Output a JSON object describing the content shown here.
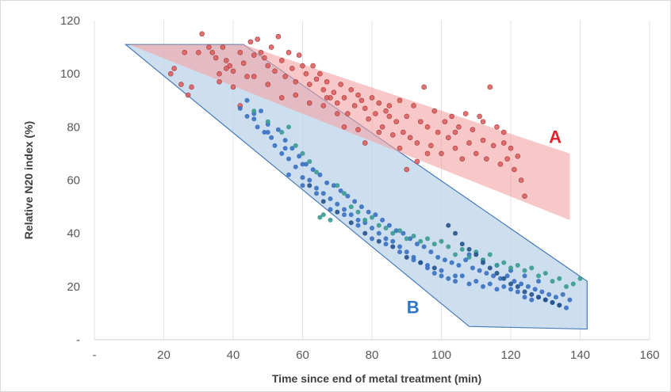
{
  "chart_data": {
    "type": "scatter",
    "xlabel": "Time since end of metal treatment (min)",
    "ylabel": "Relative N20 index (%)",
    "xlim": [
      0,
      160
    ],
    "ylim": [
      0,
      120
    ],
    "x_ticks": [
      "-",
      "20",
      "40",
      "60",
      "80",
      "100",
      "120",
      "140",
      "160"
    ],
    "y_ticks": [
      "-",
      "20",
      "40",
      "60",
      "80",
      "100",
      "120"
    ],
    "grid": "vertical",
    "colors": {
      "region_a_fill": "#f4a3a3",
      "region_a_label": "#e8222a",
      "region_b_fill": "#bcd3ea",
      "region_b_stroke": "#4a7bb7",
      "region_b_label": "#2e75c7",
      "points_red": "#d95a5a",
      "points_blue": "#3a70c0",
      "points_teal": "#3a9a90",
      "points_navy": "#24528a",
      "grid": "#e3e3e3"
    },
    "regions": [
      {
        "label": "A",
        "polygon": [
          [
            10,
            111
          ],
          [
            43,
            111
          ],
          [
            137,
            70
          ],
          [
            137,
            45
          ]
        ]
      },
      {
        "label": "B",
        "polygon": [
          [
            9,
            111
          ],
          [
            43,
            111
          ],
          [
            142,
            22
          ],
          [
            142,
            4
          ],
          [
            108,
            5
          ]
        ]
      }
    ],
    "series": [
      {
        "color_key": "points_red",
        "points": [
          [
            22,
            100
          ],
          [
            23,
            102
          ],
          [
            25,
            96
          ],
          [
            26,
            108
          ],
          [
            27,
            92
          ],
          [
            28,
            95
          ],
          [
            30,
            108
          ],
          [
            31,
            115
          ],
          [
            33,
            110
          ],
          [
            34,
            108
          ],
          [
            35,
            106
          ],
          [
            36,
            100
          ],
          [
            37,
            110
          ],
          [
            38,
            105
          ],
          [
            39,
            103
          ],
          [
            40,
            101
          ],
          [
            42,
            108
          ],
          [
            43,
            104
          ],
          [
            44,
            99
          ],
          [
            45,
            112
          ],
          [
            46,
            107
          ],
          [
            47,
            113
          ],
          [
            48,
            108
          ],
          [
            49,
            106
          ],
          [
            50,
            103
          ],
          [
            51,
            110
          ],
          [
            52,
            101
          ],
          [
            53,
            114
          ],
          [
            54,
            105
          ],
          [
            55,
            99
          ],
          [
            56,
            108
          ],
          [
            57,
            102
          ],
          [
            58,
            97
          ],
          [
            59,
            107
          ],
          [
            60,
            103
          ],
          [
            61,
            100
          ],
          [
            62,
            96
          ],
          [
            63,
            103
          ],
          [
            64,
            98
          ],
          [
            65,
            100
          ],
          [
            66,
            94
          ],
          [
            67,
            97
          ],
          [
            68,
            91
          ],
          [
            69,
            93
          ],
          [
            70,
            89
          ],
          [
            71,
            96
          ],
          [
            72,
            91
          ],
          [
            73,
            85
          ],
          [
            74,
            94
          ],
          [
            75,
            88
          ],
          [
            76,
            92
          ],
          [
            77,
            90
          ],
          [
            78,
            87
          ],
          [
            79,
            83
          ],
          [
            80,
            91
          ],
          [
            81,
            85
          ],
          [
            82,
            89
          ],
          [
            83,
            80
          ],
          [
            84,
            86
          ],
          [
            85,
            84
          ],
          [
            86,
            77
          ],
          [
            87,
            82
          ],
          [
            88,
            90
          ],
          [
            89,
            78
          ],
          [
            90,
            84
          ],
          [
            91,
            76
          ],
          [
            92,
            88
          ],
          [
            93,
            74
          ],
          [
            94,
            82
          ],
          [
            95,
            95
          ],
          [
            96,
            80
          ],
          [
            97,
            73
          ],
          [
            98,
            86
          ],
          [
            99,
            78
          ],
          [
            100,
            70
          ],
          [
            101,
            82
          ],
          [
            102,
            76
          ],
          [
            103,
            84
          ],
          [
            104,
            72
          ],
          [
            105,
            80
          ],
          [
            106,
            68
          ],
          [
            107,
            85
          ],
          [
            108,
            74
          ],
          [
            109,
            79
          ],
          [
            110,
            70
          ],
          [
            111,
            84
          ],
          [
            112,
            75
          ],
          [
            113,
            68
          ],
          [
            114,
            95
          ],
          [
            115,
            73
          ],
          [
            116,
            80
          ],
          [
            117,
            66
          ],
          [
            118,
            74
          ],
          [
            119,
            68
          ],
          [
            120,
            72
          ],
          [
            121,
            64
          ],
          [
            122,
            69
          ],
          [
            123,
            60
          ],
          [
            124,
            54
          ],
          [
            82,
            78
          ],
          [
            85,
            88
          ],
          [
            90,
            64
          ],
          [
            93,
            67
          ],
          [
            76,
            79
          ],
          [
            70,
            85
          ],
          [
            66,
            88
          ],
          [
            62,
            89
          ],
          [
            58,
            92
          ],
          [
            54,
            91
          ],
          [
            50,
            96
          ],
          [
            46,
            99
          ],
          [
            42,
            88
          ],
          [
            40,
            95
          ],
          [
            38,
            102
          ],
          [
            36,
            97
          ],
          [
            67,
            91
          ],
          [
            72,
            80
          ],
          [
            78,
            74
          ],
          [
            88,
            72
          ],
          [
            96,
            70
          ],
          [
            104,
            78
          ],
          [
            112,
            82
          ],
          [
            118,
            78
          ]
        ]
      },
      {
        "color_key": "points_blue",
        "points": [
          [
            42,
            87
          ],
          [
            44,
            84
          ],
          [
            46,
            83
          ],
          [
            47,
            80
          ],
          [
            48,
            86
          ],
          [
            49,
            78
          ],
          [
            50,
            81
          ],
          [
            51,
            76
          ],
          [
            52,
            73
          ],
          [
            53,
            79
          ],
          [
            54,
            70
          ],
          [
            55,
            75
          ],
          [
            56,
            68
          ],
          [
            57,
            72
          ],
          [
            58,
            65
          ],
          [
            59,
            69
          ],
          [
            60,
            61
          ],
          [
            61,
            66
          ],
          [
            62,
            60
          ],
          [
            63,
            64
          ],
          [
            64,
            57
          ],
          [
            65,
            62
          ],
          [
            66,
            55
          ],
          [
            67,
            59
          ],
          [
            68,
            53
          ],
          [
            69,
            58
          ],
          [
            70,
            51
          ],
          [
            71,
            56
          ],
          [
            72,
            49
          ],
          [
            73,
            54
          ],
          [
            74,
            47
          ],
          [
            75,
            52
          ],
          [
            76,
            45
          ],
          [
            77,
            50
          ],
          [
            78,
            44
          ],
          [
            79,
            48
          ],
          [
            80,
            42
          ],
          [
            81,
            47
          ],
          [
            82,
            40
          ],
          [
            83,
            45
          ],
          [
            84,
            38
          ],
          [
            85,
            43
          ],
          [
            86,
            37
          ],
          [
            87,
            41
          ],
          [
            88,
            35
          ],
          [
            89,
            40
          ],
          [
            90,
            33
          ],
          [
            91,
            38
          ],
          [
            92,
            31
          ],
          [
            93,
            36
          ],
          [
            94,
            29
          ],
          [
            95,
            35
          ],
          [
            96,
            27
          ],
          [
            97,
            33
          ],
          [
            98,
            25
          ],
          [
            99,
            31
          ],
          [
            100,
            24
          ],
          [
            101,
            30
          ],
          [
            102,
            23
          ],
          [
            103,
            29
          ],
          [
            104,
            22
          ],
          [
            105,
            28
          ],
          [
            106,
            24
          ],
          [
            107,
            30
          ],
          [
            108,
            21
          ],
          [
            109,
            27
          ],
          [
            110,
            22
          ],
          [
            111,
            26
          ],
          [
            112,
            20
          ],
          [
            113,
            25
          ],
          [
            114,
            21
          ],
          [
            115,
            24
          ],
          [
            116,
            19
          ],
          [
            117,
            23
          ],
          [
            118,
            20
          ],
          [
            119,
            24
          ],
          [
            120,
            19
          ],
          [
            121,
            22
          ],
          [
            122,
            18
          ],
          [
            123,
            21
          ],
          [
            124,
            16
          ],
          [
            125,
            20
          ],
          [
            126,
            15
          ],
          [
            127,
            19
          ],
          [
            128,
            16
          ],
          [
            129,
            18
          ],
          [
            130,
            15
          ],
          [
            131,
            17
          ],
          [
            132,
            14
          ],
          [
            133,
            16
          ],
          [
            134,
            13
          ],
          [
            135,
            17
          ],
          [
            136,
            12
          ],
          [
            137,
            15
          ],
          [
            56,
            62
          ],
          [
            60,
            58
          ],
          [
            64,
            55
          ],
          [
            68,
            49
          ],
          [
            72,
            47
          ],
          [
            76,
            43
          ],
          [
            80,
            38
          ],
          [
            84,
            36
          ],
          [
            88,
            33
          ],
          [
            92,
            30
          ],
          [
            96,
            28
          ],
          [
            100,
            26
          ],
          [
            104,
            24
          ],
          [
            108,
            32
          ],
          [
            112,
            30
          ],
          [
            116,
            28
          ],
          [
            120,
            26
          ],
          [
            124,
            24
          ],
          [
            128,
            22
          ],
          [
            60,
            66
          ],
          [
            55,
            72
          ],
          [
            50,
            78
          ],
          [
            46,
            85
          ],
          [
            44,
            90
          ]
        ]
      },
      {
        "color_key": "points_teal",
        "points": [
          [
            46,
            86
          ],
          [
            50,
            82
          ],
          [
            54,
            78
          ],
          [
            56,
            80
          ],
          [
            58,
            73
          ],
          [
            60,
            70
          ],
          [
            62,
            67
          ],
          [
            64,
            63
          ],
          [
            65,
            46
          ],
          [
            66,
            47
          ],
          [
            68,
            45
          ],
          [
            70,
            58
          ],
          [
            72,
            55
          ],
          [
            74,
            50
          ],
          [
            76,
            48
          ],
          [
            78,
            45
          ],
          [
            80,
            46
          ],
          [
            82,
            43
          ],
          [
            84,
            42
          ],
          [
            86,
            40
          ],
          [
            88,
            41
          ],
          [
            90,
            38
          ],
          [
            92,
            39
          ],
          [
            94,
            37
          ],
          [
            96,
            38
          ],
          [
            98,
            36
          ],
          [
            100,
            37
          ],
          [
            102,
            35
          ],
          [
            104,
            32
          ],
          [
            106,
            34
          ],
          [
            108,
            31
          ],
          [
            110,
            33
          ],
          [
            112,
            30
          ],
          [
            114,
            32
          ],
          [
            116,
            28
          ],
          [
            118,
            29
          ],
          [
            120,
            27
          ],
          [
            122,
            28
          ],
          [
            124,
            26
          ],
          [
            126,
            27
          ],
          [
            128,
            24
          ],
          [
            130,
            25
          ],
          [
            132,
            22
          ],
          [
            134,
            23
          ],
          [
            136,
            20
          ],
          [
            138,
            21
          ],
          [
            140,
            23
          ]
        ]
      },
      {
        "color_key": "points_navy",
        "points": [
          [
            62,
            58
          ],
          [
            66,
            52
          ],
          [
            70,
            48
          ],
          [
            74,
            44
          ],
          [
            78,
            40
          ],
          [
            82,
            37
          ],
          [
            86,
            35
          ],
          [
            90,
            31
          ],
          [
            94,
            29
          ],
          [
            98,
            27
          ],
          [
            102,
            43
          ],
          [
            104,
            40
          ],
          [
            106,
            36
          ],
          [
            108,
            34
          ],
          [
            110,
            32
          ],
          [
            112,
            29
          ],
          [
            114,
            27
          ],
          [
            116,
            25
          ],
          [
            118,
            23
          ],
          [
            120,
            21
          ],
          [
            122,
            20
          ],
          [
            124,
            18
          ],
          [
            126,
            17
          ],
          [
            128,
            16
          ],
          [
            130,
            15
          ],
          [
            132,
            14
          ],
          [
            134,
            13
          ]
        ]
      }
    ]
  },
  "labels": {
    "region_a": "A",
    "region_b": "B"
  }
}
